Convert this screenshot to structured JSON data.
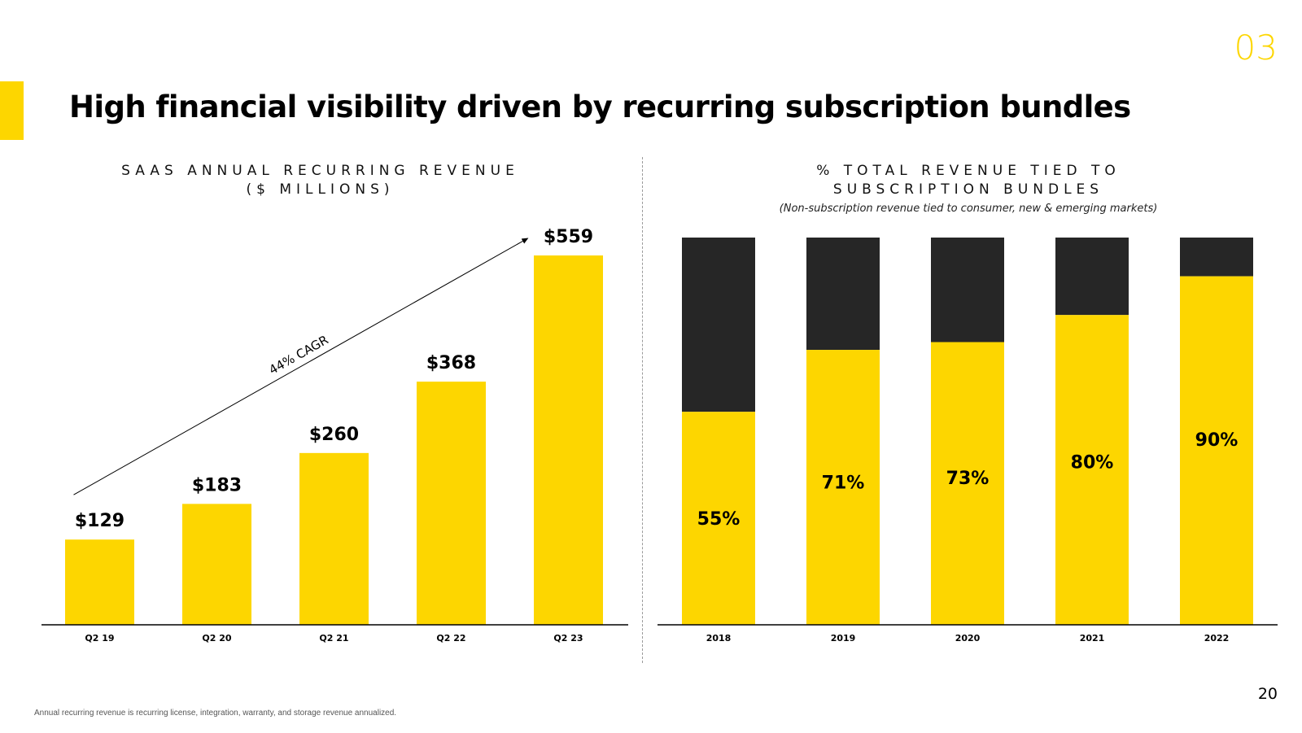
{
  "section_number": "03",
  "page_title": "High financial visibility driven by recurring subscription bundles",
  "page_number": "20",
  "footnote": "Annual recurring revenue is recurring license, integration, warranty, and storage revenue annualized.",
  "colors": {
    "accent": "#FDD600",
    "dark": "#262626"
  },
  "chart_data": [
    {
      "type": "bar",
      "title_lines": [
        "SAAS ANNUAL RECURRING REVENUE",
        "($ MILLIONS)"
      ],
      "categories": [
        "Q2 19",
        "Q2 20",
        "Q2 21",
        "Q2 22",
        "Q2 23"
      ],
      "values": [
        129,
        183,
        260,
        368,
        559
      ],
      "data_labels": [
        "$129",
        "$183",
        "$260",
        "$368",
        "$559"
      ],
      "annotation": "44% CAGR",
      "ylim": [
        0,
        559
      ]
    },
    {
      "type": "bar",
      "stacked": true,
      "title_lines": [
        "% TOTAL REVENUE TIED TO",
        "SUBSCRIPTION BUNDLES"
      ],
      "subtitle": "(Non-subscription revenue tied to consumer, new & emerging markets)",
      "categories": [
        "2018",
        "2019",
        "2020",
        "2021",
        "2022"
      ],
      "values": [
        55,
        71,
        73,
        80,
        90
      ],
      "data_labels": [
        "55%",
        "71%",
        "73%",
        "80%",
        "90%"
      ],
      "ylim": [
        0,
        100
      ]
    }
  ]
}
